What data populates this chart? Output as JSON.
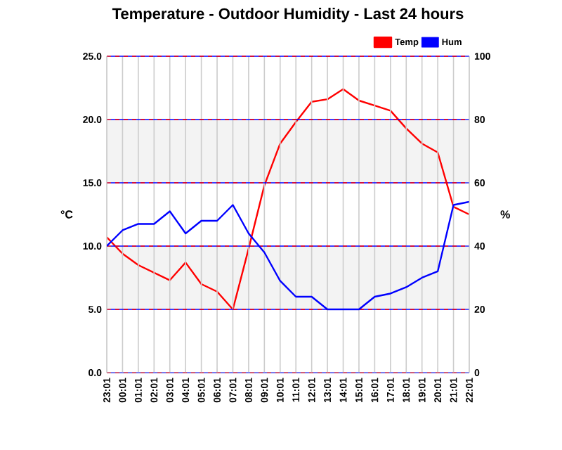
{
  "chart_data": {
    "type": "line",
    "title": "Temperature - Outdoor Humidity - Last 24 hours",
    "ylabel": "°C",
    "y2label": "%",
    "categories": [
      "23:01",
      "00:01",
      "01:01",
      "02:01",
      "03:01",
      "04:01",
      "05:01",
      "06:01",
      "07:01",
      "08:01",
      "09:01",
      "10:01",
      "11:01",
      "12:01",
      "13:01",
      "14:01",
      "15:01",
      "16:01",
      "17:01",
      "18:01",
      "19:01",
      "20:01",
      "21:01",
      "22:01"
    ],
    "series": [
      {
        "name": "Temp",
        "color": "#ff0000",
        "values": [
          10.7,
          9.4,
          8.5,
          7.9,
          7.3,
          8.7,
          7.0,
          6.4,
          5.0,
          9.8,
          14.8,
          18.1,
          19.8,
          21.4,
          21.6,
          22.4,
          21.5,
          21.1,
          20.7,
          19.3,
          18.1,
          17.4,
          13.1,
          12.5
        ]
      },
      {
        "name": "Hum",
        "color": "#0000ff",
        "axis": "y2",
        "values": [
          40,
          45,
          47,
          47,
          51,
          44,
          48,
          48,
          53,
          44,
          38,
          29,
          24,
          24,
          20,
          20,
          20,
          24,
          25,
          27,
          30,
          32,
          53,
          54
        ]
      }
    ],
    "ylim": [
      0,
      25
    ],
    "yticks": [
      {
        "value": 0,
        "label": "0.0"
      },
      {
        "value": 5,
        "label": "5.0"
      },
      {
        "value": 10,
        "label": "10.0"
      },
      {
        "value": 15,
        "label": "15.0"
      },
      {
        "value": 20,
        "label": "20.0"
      },
      {
        "value": 25,
        "label": "25.0"
      }
    ],
    "y2lim": [
      0,
      100
    ],
    "y2ticks": [
      0,
      20,
      40,
      60,
      80,
      100
    ],
    "bands": [
      {
        "axis": "y",
        "from": 5,
        "to": 10,
        "color": "#f3f3f3"
      },
      {
        "axis": "y",
        "from": 15,
        "to": 20,
        "color": "#f3f3f3"
      }
    ],
    "grid": true,
    "legend": "top right",
    "marker": "none",
    "line_style": "solid"
  }
}
